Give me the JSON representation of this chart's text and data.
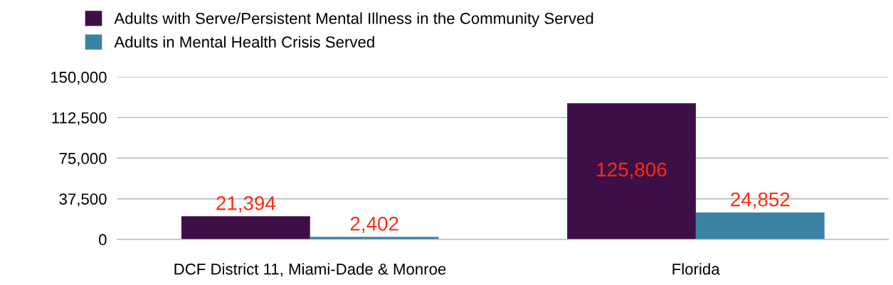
{
  "chart_data": {
    "type": "bar",
    "categories": [
      "DCF District 11, Miami-Dade & Monroe",
      "Florida"
    ],
    "series": [
      {
        "name": "Adults with Serve/Persistent Mental Illness in the Community Served",
        "color": "#3e0f47",
        "values": [
          21394,
          125806
        ],
        "value_labels": [
          "21,394",
          "125,806"
        ]
      },
      {
        "name": "Adults in Mental Health Crisis Served",
        "color": "#3a83a5",
        "values": [
          2402,
          24852
        ],
        "value_labels": [
          "2,402",
          "24,852"
        ]
      }
    ],
    "ylim": [
      0,
      150000
    ],
    "yticks": [
      {
        "value": 0,
        "label": "0"
      },
      {
        "value": 37500,
        "label": "37,500"
      },
      {
        "value": 75000,
        "label": "75,000"
      },
      {
        "value": 112500,
        "label": "112,500"
      },
      {
        "value": 150000,
        "label": "150,000"
      }
    ],
    "grid": "y",
    "legend": "top left"
  }
}
